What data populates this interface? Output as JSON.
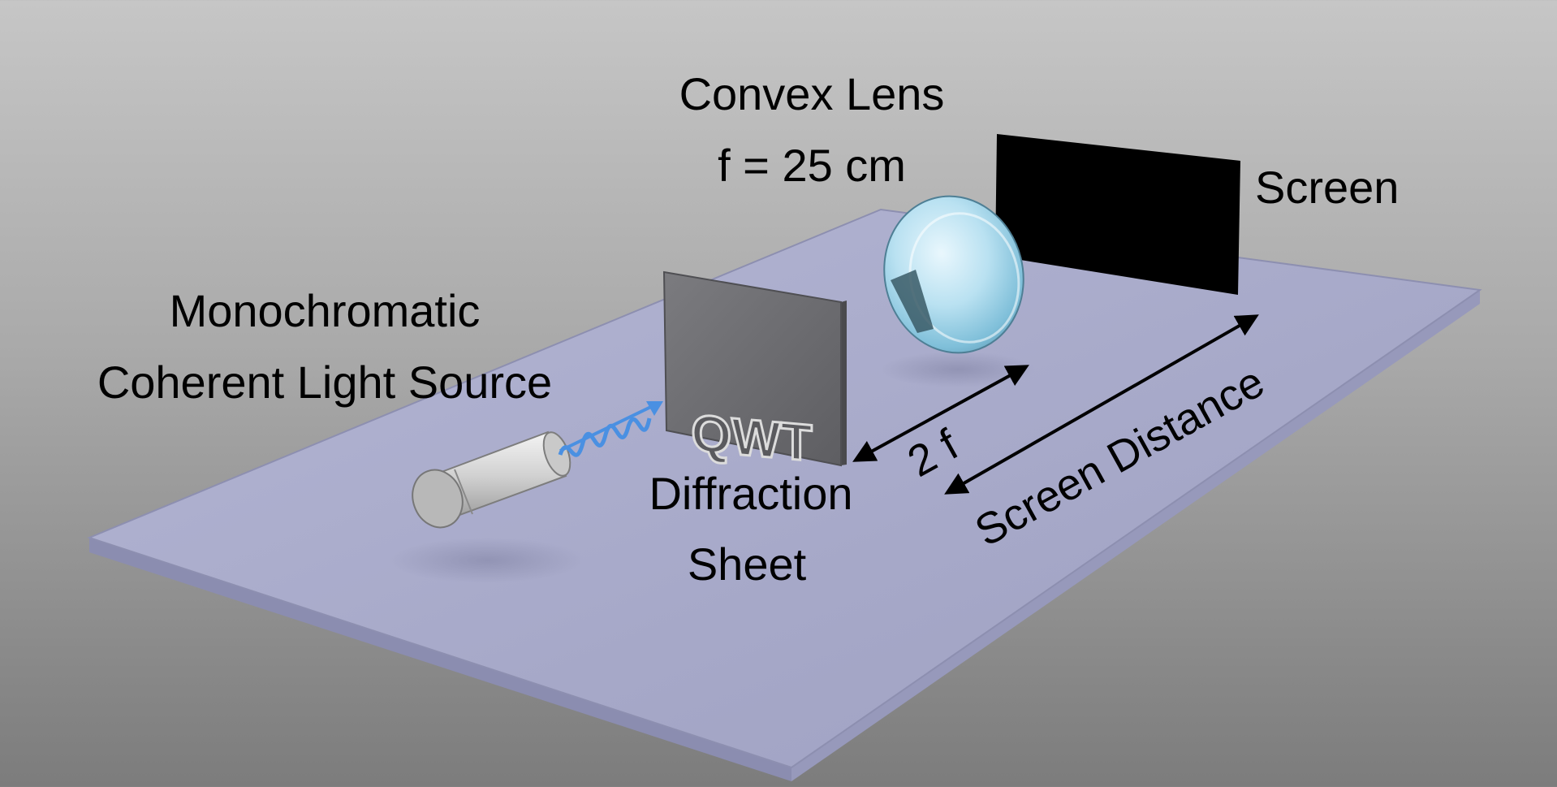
{
  "diagram": {
    "labels": {
      "light_source_line1": "Monochromatic",
      "light_source_line2": "Coherent Light Source",
      "lens_line1": "Convex Lens",
      "lens_line2": "f = 25 cm",
      "screen": "Screen",
      "diffraction_line1": "Diffraction",
      "diffraction_line2": "Sheet",
      "two_f": "2 f",
      "screen_distance": "Screen Distance",
      "screen_mark": "?",
      "sheet_cutout": "QWT"
    },
    "colors": {
      "table_top": "#a7a9c8",
      "table_edge": "#8b8db0",
      "screen_fill": "#000000",
      "screen_text": "#e8e8e8",
      "sheet_fill": "#6f6f72",
      "lens_fill": "#a8d6ea",
      "wave": "#4a90e2",
      "cylinder": "#d4d4d4",
      "arrow": "#000000"
    },
    "icons": {
      "light_source": "laser-cylinder-icon",
      "wave": "light-wave-icon",
      "lens": "convex-lens-icon"
    }
  }
}
